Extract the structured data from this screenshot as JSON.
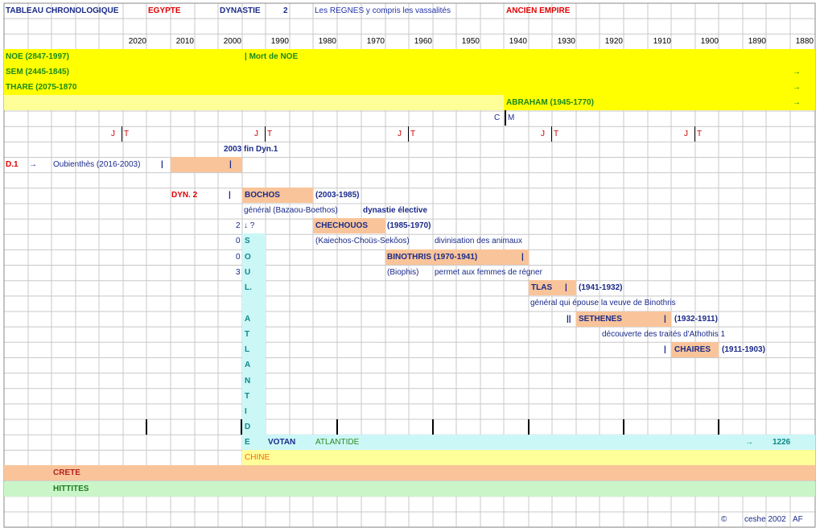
{
  "header": {
    "title": "TABLEAU CHRONOLOGIQUE",
    "country": "EGYPTE",
    "dynastie": "DYNASTIE",
    "dynastie_number": "2",
    "regnes": "Les REGNES y compris les vassalités",
    "empire": "ANCIEN EMPIRE"
  },
  "years": [
    "2020",
    "2010",
    "2000",
    "1990",
    "1980",
    "1970",
    "1960",
    "1950",
    "1940",
    "1930",
    "1920",
    "1910",
    "1900",
    "1890",
    "1880"
  ],
  "patriarchs": {
    "noe": "NOE (2847-1997)",
    "noe_death": "| Mort de NOE",
    "sem": "SEM (2445-1845)",
    "thare": "THARE (2075-1870",
    "abraham": "ABRAHAM (1945-1770)",
    "arrow": "→"
  },
  "markers": {
    "c": "C",
    "m": "M",
    "j": "J",
    "t": "T"
  },
  "dynasty1": {
    "end": "2003  fin Dyn.1",
    "label": "D.1",
    "arrow": "→",
    "king": "Oubienthès (2016-2003)"
  },
  "common": {
    "bar": "|",
    "double_bar": "||"
  },
  "dynasty2": {
    "label": "DYN. 2",
    "bochos": {
      "name": "BOCHOS",
      "dates": "(2003-1985)",
      "note": "général (Bazaou-Boethos)"
    },
    "elective": "dynastie élective",
    "chechouos": {
      "name": "CHECHOUOS",
      "dates": "(1985-1970)",
      "note": "(Kaiechos-Choüs-Sekôos)"
    },
    "animals": "divinisation des animaux",
    "binothris": {
      "name": "BINOTHRIS (1970-1941)",
      "note": "(Biophis)"
    },
    "women": "permet aux femmes de régner",
    "tlas": {
      "name": "TLAS",
      "dates": "(1941-1932)",
      "note": "général qui épouse la veuve de Binothris"
    },
    "sethenes": {
      "name": "SETHENES",
      "dates": "(1932-1911)",
      "note": "découverte des traités d'Athothis 1"
    },
    "chaires": {
      "name": "CHAIRES",
      "dates": "(1911-1903)"
    }
  },
  "soul": {
    "digits": [
      "2",
      "0",
      "0",
      "3"
    ],
    "arrow": "↓ ?",
    "letters": [
      "S",
      "O",
      "U",
      "L."
    ]
  },
  "atlantide": {
    "letters": [
      "A",
      "T",
      "L",
      "A",
      "N",
      "T",
      "I",
      "D",
      "E"
    ],
    "votan": "VOTAN",
    "label": "ATLANTIDE",
    "arrow": "→",
    "year": "1226"
  },
  "civilizations": {
    "chine": "CHINE",
    "crete": "CRETE",
    "hittites": "HITTITES"
  },
  "footer": {
    "copyright": "©",
    "author": "ceshe 2002",
    "initials": "AF"
  },
  "colors": {
    "yellow": "#ffff00",
    "pale_yellow": "#ffff99",
    "salmon": "#f9c49a",
    "cyan": "#ccf7f7",
    "light_green": "#c9f5c9"
  }
}
